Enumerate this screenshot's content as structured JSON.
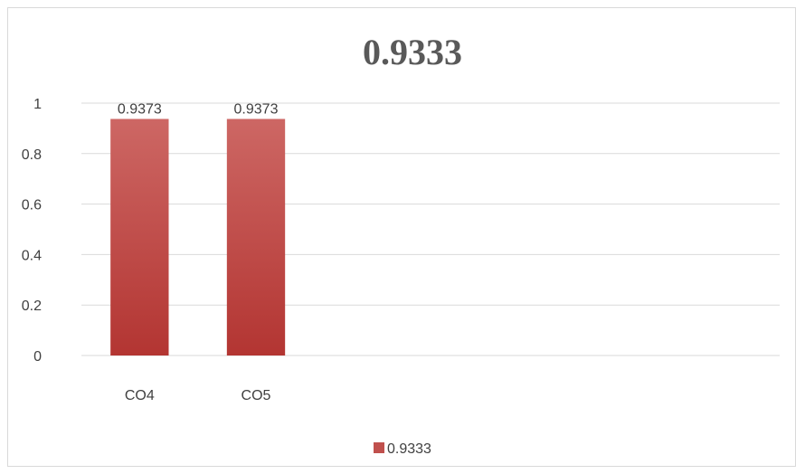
{
  "chart_data": {
    "type": "bar",
    "title": "0.9333",
    "categories": [
      "CO4",
      "CO5",
      "",
      "",
      "",
      ""
    ],
    "series": [
      {
        "name": "0.9333",
        "values": [
          0.9373,
          0.9373,
          null,
          null,
          null,
          null
        ],
        "color": "#c0504d"
      }
    ],
    "data_labels": [
      "0.9373",
      "0.9373"
    ],
    "ylim": [
      0,
      1
    ],
    "y_ticks": [
      0,
      0.2,
      0.4,
      0.6,
      0.8,
      1
    ],
    "y_tick_labels": [
      "0",
      "0.2",
      "0.4",
      "0.6",
      "0.8",
      "1"
    ],
    "grid": true,
    "legend": "bottom",
    "xlabel": "",
    "ylabel": ""
  }
}
